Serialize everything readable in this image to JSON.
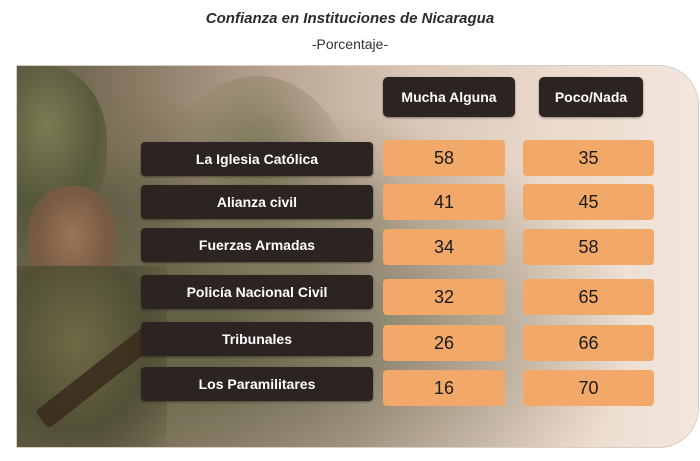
{
  "chart_data": {
    "type": "table",
    "title": "Confianza en Instituciones de Nicaragua",
    "subtitle": "-Porcentaje-",
    "columns": [
      "Mucha Alguna",
      "Poco/Nada"
    ],
    "rows": [
      {
        "label": "La Iglesia Católica",
        "values": [
          58,
          35
        ]
      },
      {
        "label": "Alianza civil",
        "values": [
          41,
          45
        ]
      },
      {
        "label": "Fuerzas Armadas",
        "values": [
          34,
          58
        ]
      },
      {
        "label": "Policía Nacional Civil",
        "values": [
          32,
          65
        ]
      },
      {
        "label": "Tribunales",
        "values": [
          26,
          66
        ]
      },
      {
        "label": "Los  Paramilitares",
        "values": [
          16,
          70
        ]
      }
    ]
  },
  "colors": {
    "label_bg": "#2b2420",
    "cell_bg": "#f1a868"
  }
}
